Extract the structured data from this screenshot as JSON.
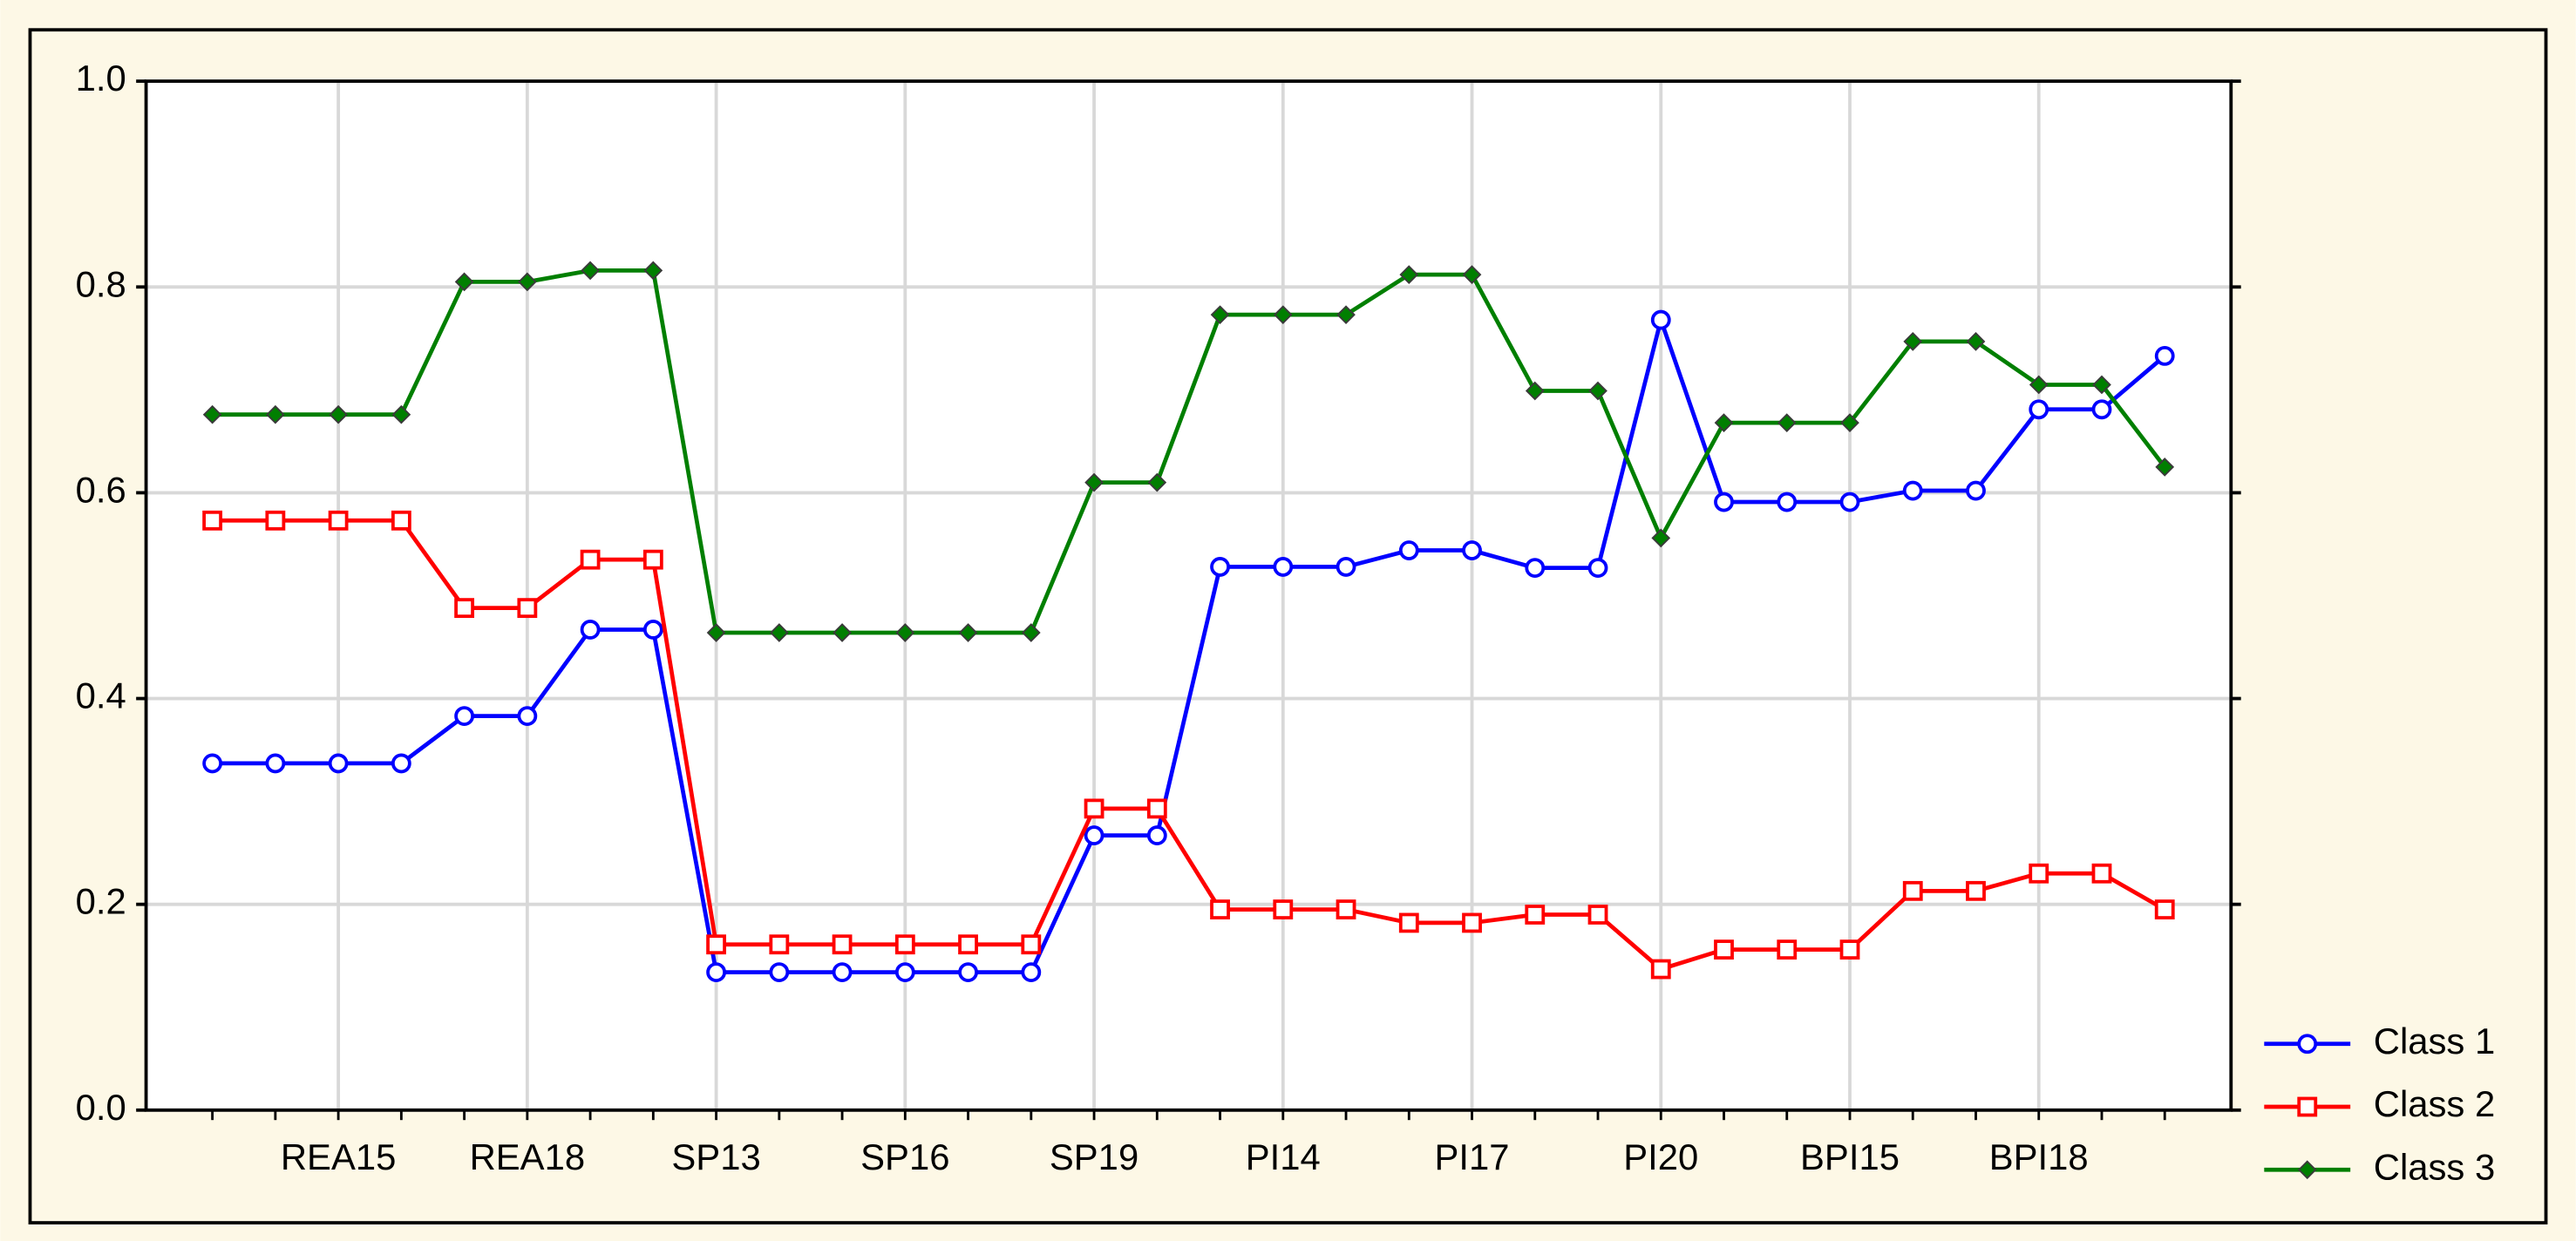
{
  "chart_data": {
    "type": "line",
    "categories": [
      null,
      null,
      "REA15",
      null,
      null,
      "REA18",
      null,
      null,
      "SP13",
      null,
      null,
      "SP16",
      null,
      null,
      "SP19",
      null,
      null,
      "PI14",
      null,
      null,
      "PI17",
      null,
      null,
      "PI20",
      null,
      null,
      "BPI15",
      null,
      null,
      "BPI18",
      null,
      null
    ],
    "series": [
      {
        "name": "Class 1",
        "color": "#0000ff",
        "marker": "circle",
        "values": [
          0.337,
          0.337,
          0.337,
          0.337,
          0.383,
          0.383,
          0.467,
          0.467,
          0.134,
          0.134,
          0.134,
          0.134,
          0.134,
          0.134,
          0.267,
          0.267,
          0.528,
          0.528,
          0.528,
          0.544,
          0.544,
          0.527,
          0.527,
          0.768,
          0.591,
          0.591,
          0.591,
          0.602,
          0.602,
          0.681,
          0.681,
          0.733
        ]
      },
      {
        "name": "Class 2",
        "color": "#ff0000",
        "marker": "square",
        "values": [
          0.573,
          0.573,
          0.573,
          0.573,
          0.488,
          0.488,
          0.535,
          0.535,
          0.161,
          0.161,
          0.161,
          0.161,
          0.161,
          0.161,
          0.293,
          0.293,
          0.195,
          0.195,
          0.195,
          0.182,
          0.182,
          0.19,
          0.19,
          0.137,
          0.156,
          0.156,
          0.156,
          0.213,
          0.213,
          0.23,
          0.23,
          0.195
        ]
      },
      {
        "name": "Class 3",
        "color": "#007f00",
        "marker": "diamond",
        "values": [
          0.676,
          0.676,
          0.676,
          0.676,
          0.805,
          0.805,
          0.816,
          0.816,
          0.464,
          0.464,
          0.464,
          0.464,
          0.464,
          0.464,
          0.61,
          0.61,
          0.773,
          0.773,
          0.773,
          0.812,
          0.812,
          0.699,
          0.699,
          0.556,
          0.668,
          0.668,
          0.668,
          0.747,
          0.747,
          0.705,
          0.705,
          0.625
        ]
      }
    ],
    "ylim": [
      0,
      1
    ],
    "yticks": [
      {
        "value": 0,
        "label": "0.0"
      },
      0.2,
      0.4,
      0.6,
      0.8,
      {
        "value": 1,
        "label": "1.0"
      }
    ],
    "grid": true
  }
}
